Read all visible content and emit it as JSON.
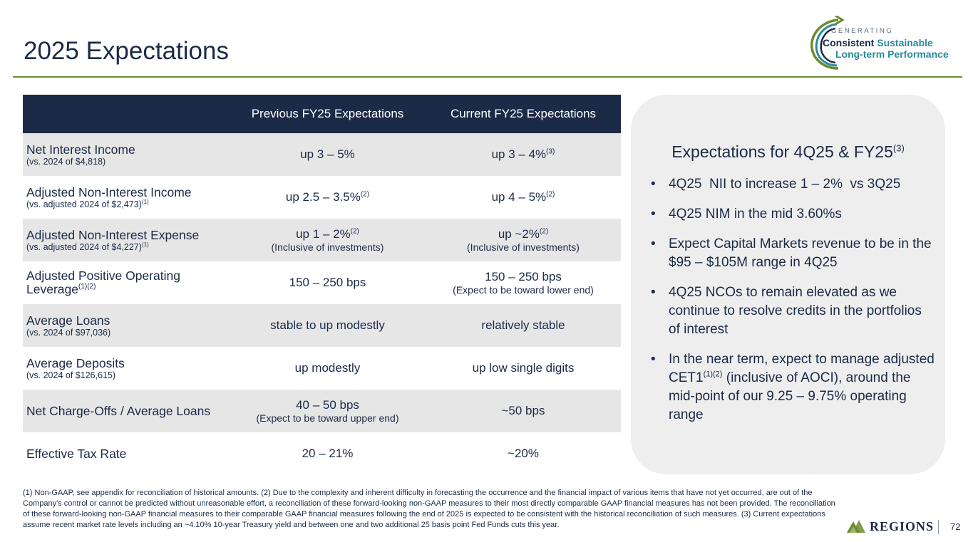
{
  "slide": {
    "title": "2025 Expectations",
    "page_number": "72"
  },
  "logo": {
    "generating": "GENERATING",
    "consistent": "Consistent",
    "sustainable": "Sustainable",
    "line2": "Long-term Performance"
  },
  "table": {
    "headers": [
      "",
      "Previous FY25 Expectations",
      "Current FY25 Expectations"
    ],
    "rows": [
      {
        "metric": "Net Interest Income",
        "metric_sub": "(vs. 2024 of $4,818)",
        "metric_sup": "",
        "prev": "up 3 – 5%",
        "prev_sup": "",
        "prev_sub": "",
        "curr": "up 3 – 4%",
        "curr_sup": "(3)",
        "curr_sub": ""
      },
      {
        "metric": "Adjusted Non-Interest Income",
        "metric_sub": "(vs. adjusted 2024 of $2,473)",
        "metric_sub_sup": "(1)",
        "prev": "up 2.5 – 3.5%",
        "prev_sup": "(2)",
        "curr": "up 4 – 5%",
        "curr_sup": "(2)"
      },
      {
        "metric": "Adjusted Non-Interest Expense",
        "metric_sub": "(vs. adjusted 2024 of $4,227)",
        "metric_sub_sup": "(1)",
        "prev": "up 1 – 2%",
        "prev_sup": "(2)",
        "prev_sub": "(Inclusive of investments)",
        "curr": "up ~2%",
        "curr_sup": "(2)",
        "curr_sub": "(Inclusive of investments)"
      },
      {
        "metric_line1": "Adjusted Positive Operating",
        "metric_line2": "Leverage",
        "metric_sup": "(1)(2)",
        "prev": "150 – 250 bps",
        "curr": "150 – 250 bps",
        "curr_sub": "(Expect to be toward lower end)"
      },
      {
        "metric": "Average Loans",
        "metric_sub": "(vs. 2024 of $97,036)",
        "prev": "stable to up modestly",
        "curr": "relatively stable"
      },
      {
        "metric": "Average Deposits",
        "metric_sub": "(vs. 2024 of $126,615)",
        "prev": "up modestly",
        "curr": "up low single digits"
      },
      {
        "metric": "Net Charge-Offs / Average Loans",
        "prev": "40 – 50 bps",
        "prev_sub": "(Expect to be toward upper end)",
        "curr": "~50 bps"
      },
      {
        "metric": "Effective Tax Rate",
        "prev": "20 – 21%",
        "curr": "~20%"
      }
    ]
  },
  "panel": {
    "title": "Expectations for 4Q25 & FY25",
    "title_sup": "(3)",
    "bullets": [
      "4Q25  NII to increase 1 – 2%  vs 3Q25",
      "4Q25 NIM in the mid 3.60%s",
      "Expect Capital Markets revenue to be in the $95 – $105M range in 4Q25",
      "4Q25 NCOs to remain elevated as we continue to resolve credits in the portfolios of interest"
    ],
    "bullet5_pre": "In the near term, expect to manage adjusted CET1",
    "bullet5_sup": "(1)(2)",
    "bullet5_post": " (inclusive of AOCI), around the mid-point of our 9.25 – 9.75% operating range",
    "bullet_glyph": "•"
  },
  "footnote": "(1) Non-GAAP, see appendix for reconciliation of historical amounts. (2) Due to the complexity and inherent difficulty in forecasting the occurrence and the financial impact of various items that have not yet occurred, are out of the Company's control or cannot be predicted without unreasonable effort, a reconciliation of these forward-looking non-GAAP measures to their most directly comparable GAAP financial measures has not been provided. The reconciliation of these forward-looking non-GAAP financial measures to their comparable GAAP financial measures following the end of 2025 is expected to be consistent with the historical reconciliation of such measures. (3) Current expectations assume recent market rate levels including an ~4.10% 10-year Treasury yield and between one and two additional 25 basis point Fed Funds cuts this year.",
  "brand": {
    "name": "Regions",
    "green": "#6d8a2f",
    "navy": "#1b2a47"
  }
}
